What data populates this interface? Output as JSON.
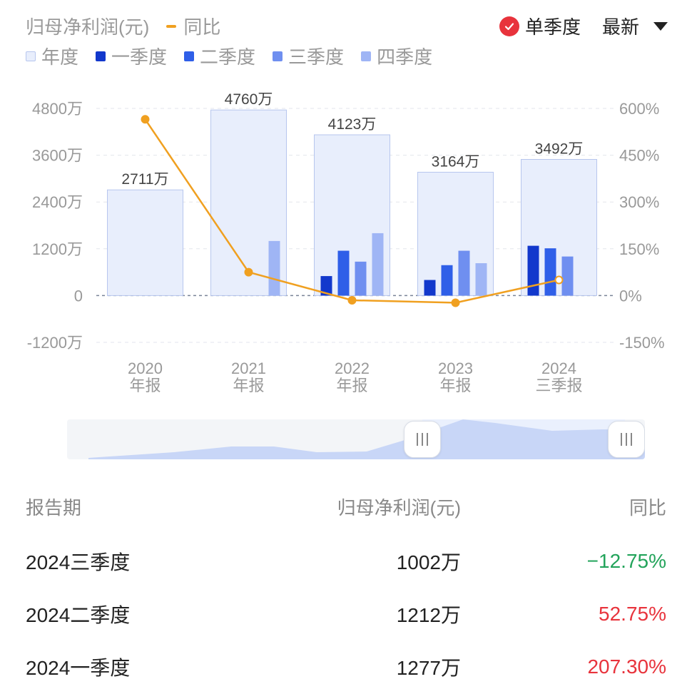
{
  "legend": {
    "row1": [
      {
        "label": "归母净利润(元)",
        "kind": "text",
        "color": "#999999"
      },
      {
        "label": "同比",
        "kind": "line",
        "color": "#f0a020"
      }
    ],
    "row2": [
      {
        "label": "年度",
        "color": "#e8eefc"
      },
      {
        "label": "一季度",
        "color": "#1238cc"
      },
      {
        "label": "二季度",
        "color": "#2f5fe8"
      },
      {
        "label": "三季度",
        "color": "#6f8ff0"
      },
      {
        "label": "四季度",
        "color": "#9fb5f5"
      }
    ]
  },
  "controls": {
    "single_quarter_label": "单季度",
    "latest_label": "最新"
  },
  "chart_data": {
    "type": "bar",
    "categories": [
      "2020\n年报",
      "2021\n年报",
      "2022\n年报",
      "2023\n年报",
      "2024\n三季报"
    ],
    "annual": [
      2711,
      4760,
      4123,
      3164,
      3492
    ],
    "annual_labels": [
      "2711万",
      "4760万",
      "4123万",
      "3164万",
      "3492万"
    ],
    "series": [
      {
        "name": "一季度",
        "color": "#1238cc",
        "values": [
          null,
          null,
          500,
          400,
          1277
        ]
      },
      {
        "name": "二季度",
        "color": "#2f5fe8",
        "values": [
          null,
          null,
          1150,
          780,
          1212
        ]
      },
      {
        "name": "三季度",
        "color": "#6f8ff0",
        "values": [
          null,
          null,
          870,
          1150,
          1002
        ]
      },
      {
        "name": "四季度",
        "color": "#9fb5f5",
        "values": [
          null,
          1400,
          1600,
          830,
          null
        ]
      }
    ],
    "yoy": {
      "name": "同比",
      "color": "#f0a020",
      "values": [
        565,
        75,
        -15,
        -23,
        50
      ]
    },
    "y_left": {
      "min": -1200,
      "max": 4800,
      "ticks": [
        -1200,
        0,
        1200,
        2400,
        3600,
        4800
      ],
      "tick_labels": [
        "-1200万",
        "0",
        "1200万",
        "2400万",
        "3600万",
        "4800万"
      ]
    },
    "y_right": {
      "min": -150,
      "max": 600,
      "ticks": [
        -150,
        0,
        150,
        300,
        450,
        600
      ],
      "tick_labels": [
        "-150%",
        "0%",
        "150%",
        "300%",
        "450%",
        "600%"
      ]
    },
    "grid": true
  },
  "slider": {
    "window_start": 0.61,
    "window_end": 0.97
  },
  "table": {
    "headers": {
      "period": "报告期",
      "profit": "归母净利润(元)",
      "yoy": "同比"
    },
    "rows": [
      {
        "period": "2024三季度",
        "profit": "1002万",
        "yoy": "−12.75%",
        "yoy_color": "#22a35a"
      },
      {
        "period": "2024二季度",
        "profit": "1212万",
        "yoy": "52.75%",
        "yoy_color": "#e8333c"
      },
      {
        "period": "2024一季度",
        "profit": "1277万",
        "yoy": "207.30%",
        "yoy_color": "#e8333c"
      }
    ]
  }
}
